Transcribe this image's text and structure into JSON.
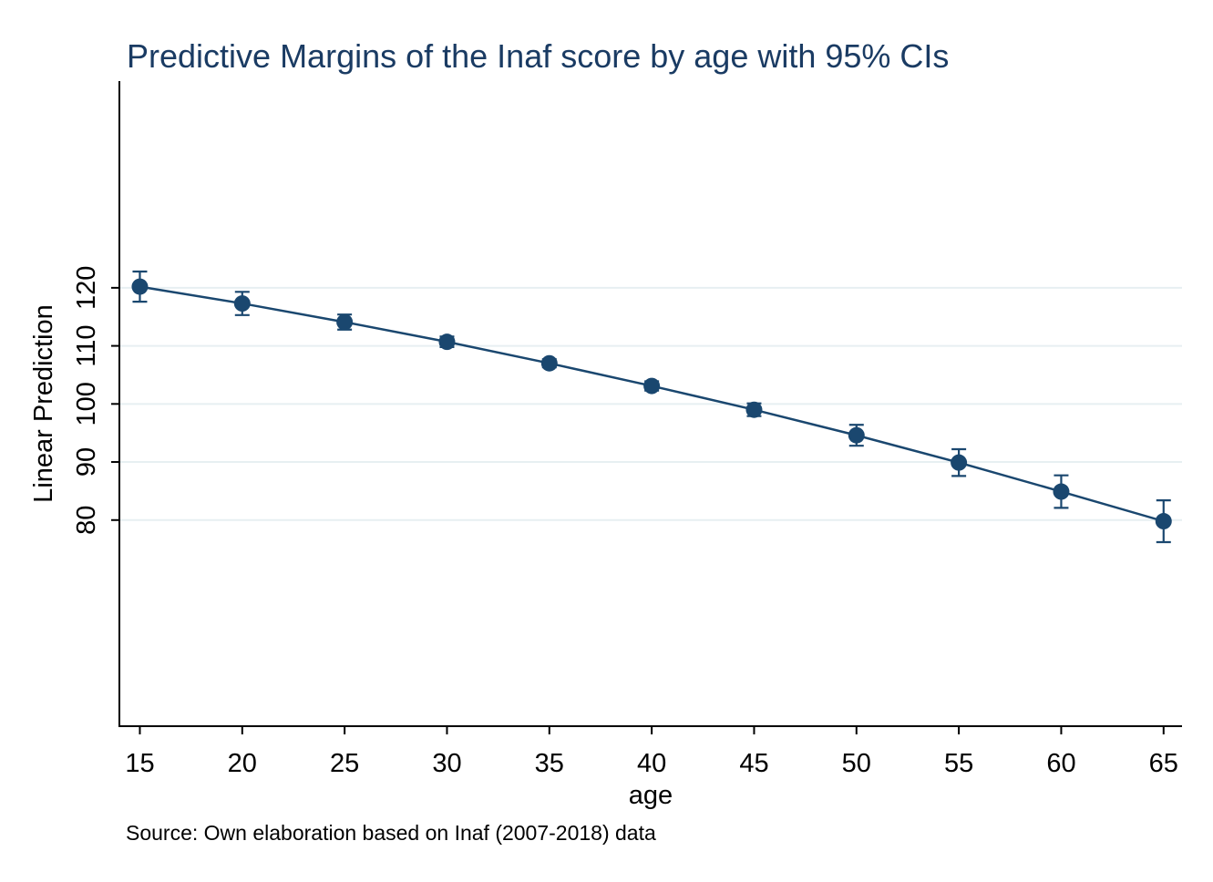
{
  "chart_data": {
    "type": "line",
    "title": "Predictive Margins of the Inaf score by age with 95% CIs",
    "xlabel": "age",
    "ylabel": "Linear Prediction",
    "note": "Source: Own elaboration based on Inaf (2007-2018) data",
    "x": [
      15,
      20,
      25,
      30,
      35,
      40,
      45,
      50,
      55,
      60,
      65
    ],
    "series": [
      {
        "values": [
          120.2,
          117.3,
          114.1,
          110.7,
          107.0,
          103.1,
          99.0,
          94.6,
          89.9,
          84.9,
          79.8
        ],
        "ci_lower": [
          117.6,
          115.3,
          112.8,
          109.8,
          106.3,
          102.3,
          97.9,
          92.8,
          87.6,
          82.1,
          76.2
        ],
        "ci_upper": [
          122.8,
          119.3,
          115.4,
          111.6,
          107.7,
          103.9,
          100.1,
          96.4,
          92.2,
          87.7,
          83.4
        ]
      }
    ],
    "xticks": [
      15,
      20,
      25,
      30,
      35,
      40,
      45,
      50,
      55,
      60,
      65
    ],
    "yticks": [
      80,
      90,
      100,
      110,
      120
    ],
    "xlim": [
      14,
      65.9
    ],
    "ylim": [
      44.5,
      155.6
    ],
    "grid": true,
    "colors": {
      "series": "#1a476f",
      "title": "#1a3b63",
      "grid": "#e7eff2"
    }
  }
}
